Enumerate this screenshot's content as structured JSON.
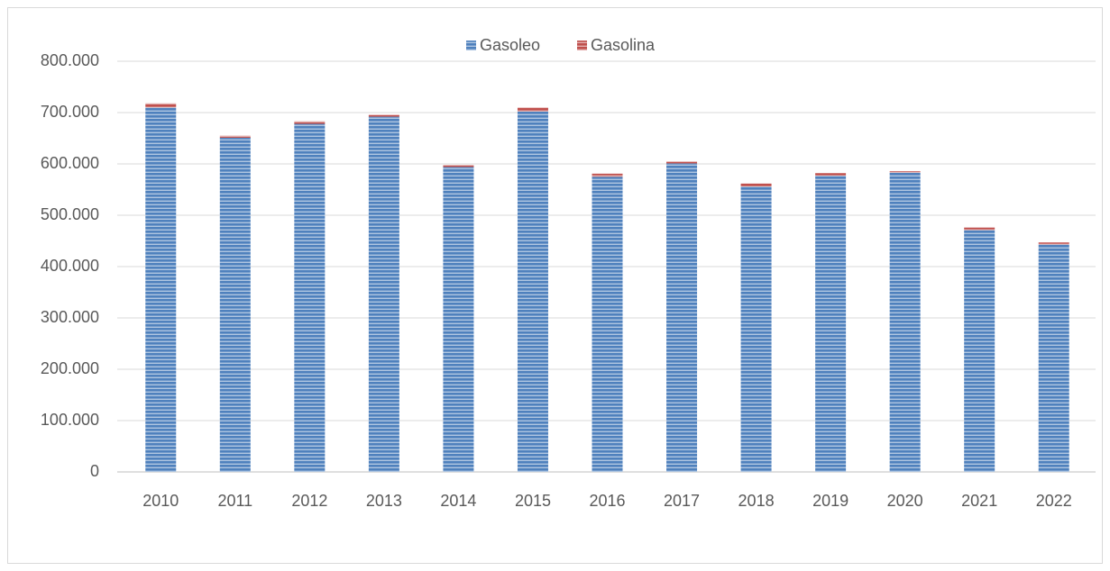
{
  "chart_data": {
    "type": "stacked_bar",
    "categories": [
      "2010",
      "2011",
      "2012",
      "2013",
      "2014",
      "2015",
      "2016",
      "2017",
      "2018",
      "2019",
      "2020",
      "2021",
      "2022"
    ],
    "series": [
      {
        "name": "Gasoleo",
        "color": "#4f81bd",
        "values": [
          710000,
          651000,
          678000,
          692000,
          594000,
          702000,
          575000,
          601000,
          556000,
          577000,
          583000,
          471000,
          443000
        ]
      },
      {
        "name": "Gasolina",
        "color": "#c0504d",
        "values": [
          8000,
          4000,
          5000,
          4000,
          4000,
          8000,
          6000,
          4000,
          6000,
          5000,
          3000,
          5000,
          4000
        ]
      }
    ],
    "ylim": [
      0,
      800000
    ],
    "yticks": [
      0,
      {
        "value": 100000,
        "label": "100.000"
      },
      {
        "value": 200000,
        "label": "200.000"
      },
      {
        "value": 300000,
        "label": "300.000"
      },
      {
        "value": 400000,
        "label": "400.000"
      },
      {
        "value": 500000,
        "label": "500.000"
      },
      {
        "value": 600000,
        "label": "600.000"
      },
      {
        "value": 700000,
        "label": "700.000"
      },
      {
        "value": 800000,
        "label": "800.000"
      }
    ],
    "grid": true,
    "legend": "top"
  }
}
